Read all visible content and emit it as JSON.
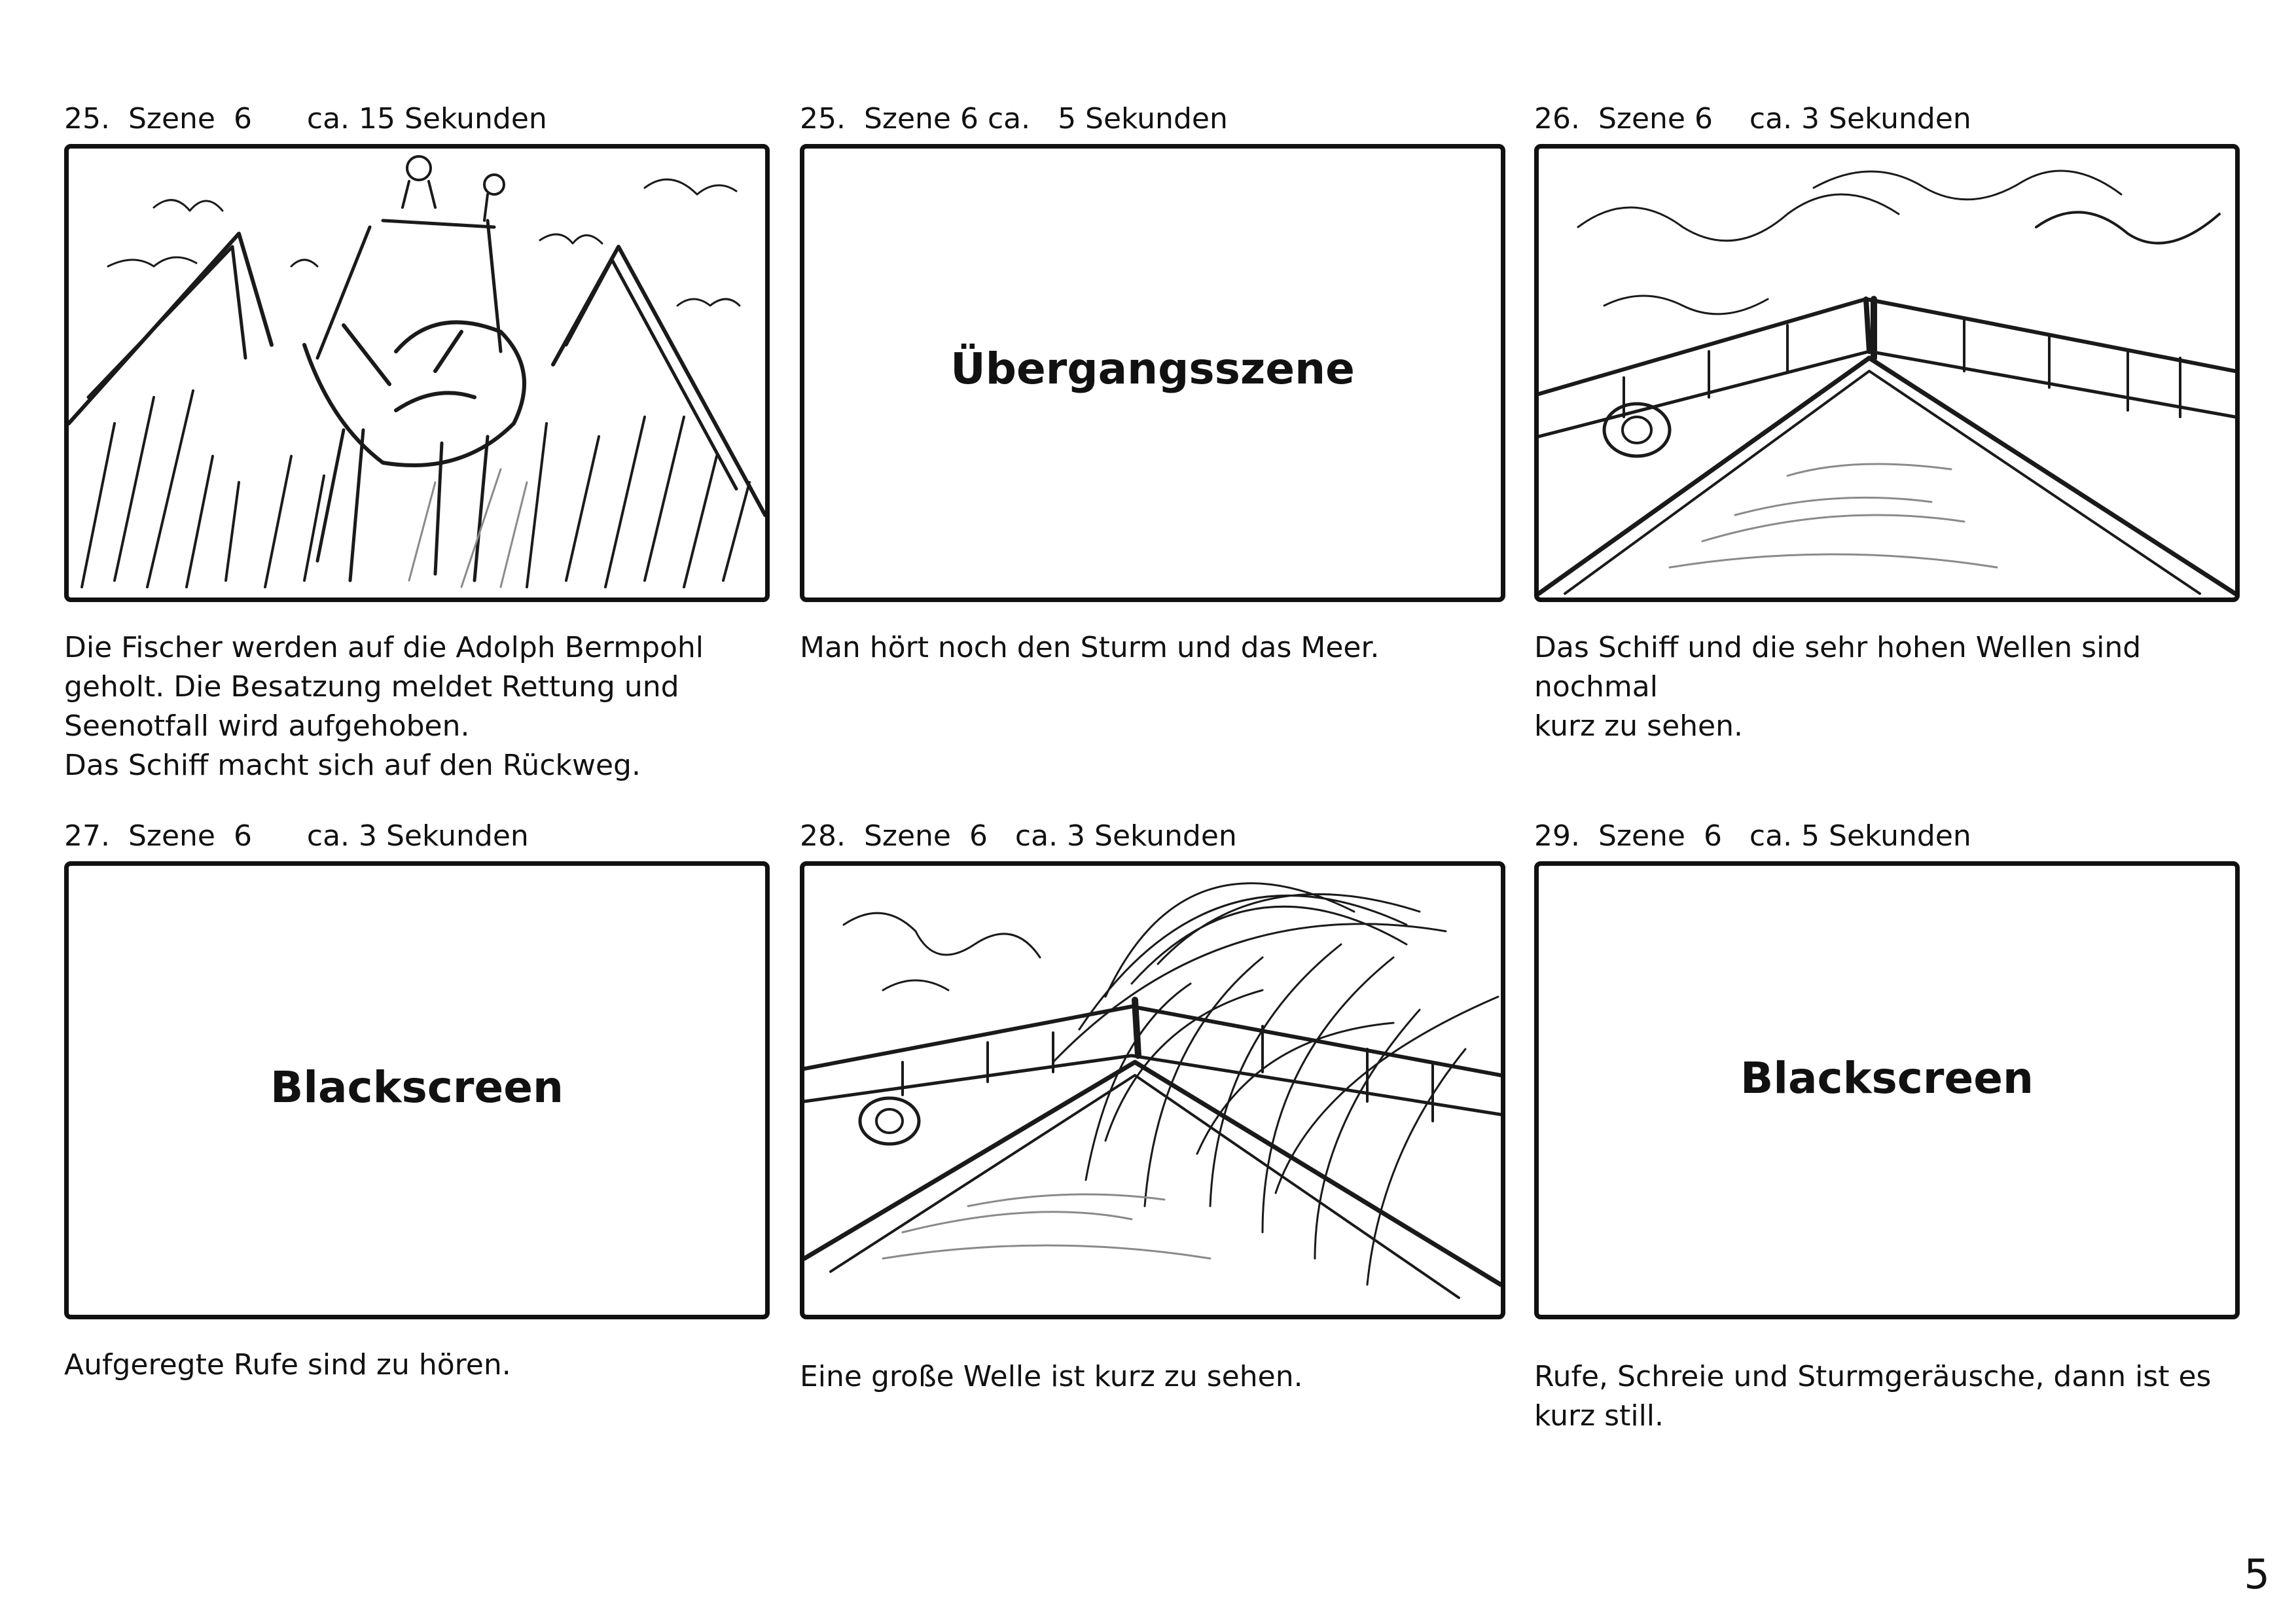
{
  "panels": [
    {
      "header": "25.  Szene  6      ca. 15 Sekunden",
      "frame_text": "",
      "caption": "Die Fischer werden auf die Adolph Bermpohl\ngeholt. Die Besatzung meldet Rettung und\nSeenotfall wird aufgehoben.\nDas Schiff macht sich auf den Rückweg."
    },
    {
      "header": "25.  Szene 6 ca.   5 Sekunden",
      "frame_text": "Übergangsszene",
      "caption": "Man hört noch den Sturm und das Meer."
    },
    {
      "header": "26.  Szene 6    ca. 3 Sekunden",
      "frame_text": "",
      "caption": "Das Schiff und die sehr hohen Wellen sind nochmal\nkurz zu sehen."
    },
    {
      "header": "27.  Szene  6      ca. 3 Sekunden",
      "frame_text": "Blackscreen",
      "caption": "Aufgeregte Rufe sind zu hören."
    },
    {
      "header": "28.  Szene  6   ca. 3 Sekunden",
      "frame_text": "",
      "caption": "Eine große Welle ist kurz zu sehen."
    },
    {
      "header": "29.  Szene  6   ca. 5 Sekunden",
      "frame_text": "Blackscreen",
      "caption": "Rufe, Schreie und Sturmgeräusche, dann ist es\nkurz still."
    }
  ],
  "page_number": "5"
}
